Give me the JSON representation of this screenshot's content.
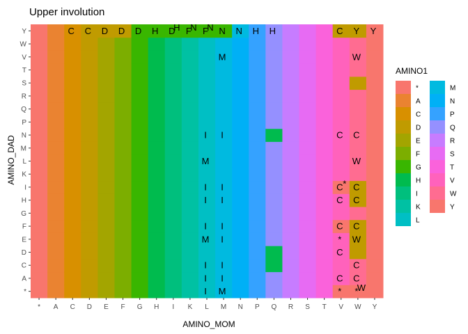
{
  "chart_data": {
    "type": "heatmap",
    "title": "Upper involution",
    "xlabel": "AMINO_MOM",
    "ylabel": "AMINO_DAD",
    "x_categories": [
      "*",
      "A",
      "C",
      "D",
      "E",
      "F",
      "G",
      "H",
      "I",
      "K",
      "L",
      "M",
      "N",
      "P",
      "Q",
      "R",
      "S",
      "T",
      "V",
      "W",
      "Y"
    ],
    "y_categories": [
      "*",
      "A",
      "C",
      "D",
      "E",
      "F",
      "G",
      "H",
      "I",
      "K",
      "L",
      "M",
      "N",
      "P",
      "Q",
      "R",
      "S",
      "T",
      "V",
      "W",
      "Y"
    ],
    "fill_rule": "Each cell is filled with the color of the AMINO1 category equal to its AMINO_MOM column, except where shown otherwise in overrides",
    "overrides": [
      {
        "x": "C",
        "y": "Y",
        "fill": "C"
      },
      {
        "x": "D",
        "y": "Y",
        "fill": "D"
      },
      {
        "x": "E",
        "y": "Y",
        "fill": "D"
      },
      {
        "x": "F",
        "y": "Y",
        "fill": "D"
      },
      {
        "x": "H",
        "y": "Y",
        "fill": "G"
      },
      {
        "x": "I",
        "y": "Y",
        "fill": "G"
      },
      {
        "x": "K",
        "y": "Y",
        "fill": "G"
      },
      {
        "x": "L",
        "y": "Y",
        "fill": "G"
      },
      {
        "x": "M",
        "y": "Y",
        "fill": "G"
      },
      {
        "x": "N",
        "y": "Y",
        "fill": "M"
      },
      {
        "x": "V",
        "y": "Y",
        "fill": "D"
      },
      {
        "x": "W",
        "y": "Y",
        "fill": "D"
      },
      {
        "x": "H",
        "y": "S",
        "fill": "H"
      },
      {
        "x": "H",
        "y": "N",
        "fill": "H"
      },
      {
        "x": "H",
        "y": "I",
        "fill": "H"
      },
      {
        "x": "H",
        "y": "H",
        "fill": "H"
      },
      {
        "x": "H",
        "y": "F",
        "fill": "H"
      },
      {
        "x": "H",
        "y": "D",
        "fill": "H"
      },
      {
        "x": "H",
        "y": "C",
        "fill": "H"
      },
      {
        "x": "H",
        "y": "*",
        "fill": "H"
      },
      {
        "x": "Q",
        "y": "N",
        "fill": "H"
      },
      {
        "x": "Q",
        "y": "D",
        "fill": "H"
      },
      {
        "x": "Q",
        "y": "C",
        "fill": "H"
      },
      {
        "x": "W",
        "y": "S",
        "fill": "D"
      },
      {
        "x": "W",
        "y": "I",
        "fill": "D"
      },
      {
        "x": "W",
        "y": "H",
        "fill": "D"
      },
      {
        "x": "W",
        "y": "F",
        "fill": "D"
      },
      {
        "x": "W",
        "y": "E",
        "fill": "D"
      },
      {
        "x": "W",
        "y": "D",
        "fill": "D"
      },
      {
        "x": "V",
        "y": "I",
        "fill": "*"
      },
      {
        "x": "V",
        "y": "F",
        "fill": "*"
      },
      {
        "x": "V",
        "y": "*",
        "fill": "*"
      },
      {
        "x": "W",
        "y": "*",
        "fill": "*"
      }
    ],
    "annotations": [
      {
        "x": "C",
        "y": "Y",
        "label": "C"
      },
      {
        "x": "D",
        "y": "Y",
        "label": "C"
      },
      {
        "x": "E",
        "y": "Y",
        "label": "D"
      },
      {
        "x": "F",
        "y": "Y",
        "label": "D"
      },
      {
        "x": "G",
        "y": "Y",
        "label": "D"
      },
      {
        "x": "I",
        "y": "Y",
        "label": "D"
      },
      {
        "x": "K",
        "y": "Y",
        "label": "F"
      },
      {
        "x": "L",
        "y": "Y",
        "label": "F"
      },
      {
        "x": "H",
        "y": "Y",
        "label": "H"
      },
      {
        "x": "I",
        "y": "Y",
        "label": "H"
      },
      {
        "x": "K",
        "y": "Y",
        "label": "N"
      },
      {
        "x": "L",
        "y": "Y",
        "label": "N"
      },
      {
        "x": "M",
        "y": "Y",
        "label": "N"
      },
      {
        "x": "N",
        "y": "Y",
        "label": "N"
      },
      {
        "x": "P",
        "y": "Y",
        "label": "H"
      },
      {
        "x": "Q",
        "y": "Y",
        "label": "H"
      },
      {
        "x": "V",
        "y": "Y",
        "label": "C"
      },
      {
        "x": "W",
        "y": "Y",
        "label": "Y"
      },
      {
        "x": "Y",
        "y": "Y",
        "label": "Y"
      },
      {
        "x": "M",
        "y": "V",
        "label": "M"
      },
      {
        "x": "W",
        "y": "V",
        "label": "W"
      },
      {
        "x": "L",
        "y": "N",
        "label": "I"
      },
      {
        "x": "M",
        "y": "N",
        "label": "I"
      },
      {
        "x": "V",
        "y": "N",
        "label": "C"
      },
      {
        "x": "W",
        "y": "N",
        "label": "C"
      },
      {
        "x": "L",
        "y": "L",
        "label": "M"
      },
      {
        "x": "W",
        "y": "L",
        "label": "W"
      },
      {
        "x": "L",
        "y": "I",
        "label": "I"
      },
      {
        "x": "M",
        "y": "I",
        "label": "I"
      },
      {
        "x": "V",
        "y": "I",
        "label": "C"
      },
      {
        "x": "W",
        "y": "I",
        "label": "C"
      },
      {
        "x": "V",
        "y": "I",
        "label": "*"
      },
      {
        "x": "L",
        "y": "H",
        "label": "I"
      },
      {
        "x": "M",
        "y": "H",
        "label": "I"
      },
      {
        "x": "V",
        "y": "H",
        "label": "C"
      },
      {
        "x": "W",
        "y": "H",
        "label": "C"
      },
      {
        "x": "L",
        "y": "F",
        "label": "I"
      },
      {
        "x": "M",
        "y": "F",
        "label": "I"
      },
      {
        "x": "V",
        "y": "F",
        "label": "C"
      },
      {
        "x": "W",
        "y": "F",
        "label": "C"
      },
      {
        "x": "L",
        "y": "E",
        "label": "M"
      },
      {
        "x": "M",
        "y": "E",
        "label": "I"
      },
      {
        "x": "V",
        "y": "E",
        "label": "*"
      },
      {
        "x": "W",
        "y": "E",
        "label": "W"
      },
      {
        "x": "V",
        "y": "D",
        "label": "C"
      },
      {
        "x": "L",
        "y": "C",
        "label": "I"
      },
      {
        "x": "M",
        "y": "C",
        "label": "I"
      },
      {
        "x": "W",
        "y": "C",
        "label": "C"
      },
      {
        "x": "L",
        "y": "A",
        "label": "I"
      },
      {
        "x": "M",
        "y": "A",
        "label": "I"
      },
      {
        "x": "V",
        "y": "A",
        "label": "C"
      },
      {
        "x": "W",
        "y": "A",
        "label": "C"
      },
      {
        "x": "L",
        "y": "*",
        "label": "I"
      },
      {
        "x": "M",
        "y": "*",
        "label": "M"
      },
      {
        "x": "V",
        "y": "*",
        "label": "*"
      },
      {
        "x": "W",
        "y": "*",
        "label": "*"
      },
      {
        "x": "W",
        "y": "*",
        "label": "W"
      }
    ],
    "legend": {
      "title": "AMINO1",
      "position": "right",
      "entries": [
        {
          "label": "*",
          "color": "#F8766D"
        },
        {
          "label": "A",
          "color": "#EA8331"
        },
        {
          "label": "C",
          "color": "#D89000"
        },
        {
          "label": "D",
          "color": "#C09B00"
        },
        {
          "label": "E",
          "color": "#A3A500"
        },
        {
          "label": "F",
          "color": "#7CAE00"
        },
        {
          "label": "G",
          "color": "#39B600"
        },
        {
          "label": "H",
          "color": "#00BB4E"
        },
        {
          "label": "I",
          "color": "#00BF7D"
        },
        {
          "label": "K",
          "color": "#00C1A3"
        },
        {
          "label": "L",
          "color": "#00BFC4"
        },
        {
          "label": "M",
          "color": "#00BAE0"
        },
        {
          "label": "N",
          "color": "#00B0F6"
        },
        {
          "label": "P",
          "color": "#35A2FF"
        },
        {
          "label": "Q",
          "color": "#9590FF"
        },
        {
          "label": "R",
          "color": "#C77CFF"
        },
        {
          "label": "S",
          "color": "#E76BF3"
        },
        {
          "label": "T",
          "color": "#FA62DB"
        },
        {
          "label": "V",
          "color": "#FF62BC"
        },
        {
          "label": "W",
          "color": "#FF6C91"
        },
        {
          "label": "Y",
          "color": "#F8766D"
        }
      ]
    }
  }
}
